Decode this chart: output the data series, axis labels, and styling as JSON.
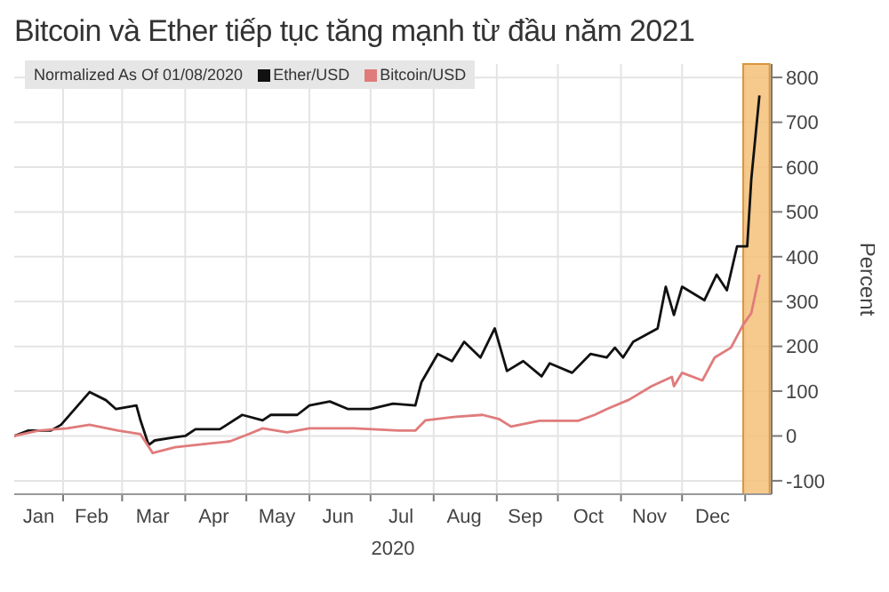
{
  "chart_data": {
    "type": "line",
    "title": "Bitcoin và Ether tiếp tục tăng mạnh từ đầu năm 2021",
    "legend_title": "Normalized As Of 01/08/2020",
    "xlabel": "2020",
    "ylabel": "Percent",
    "legend": "top left",
    "grid": true,
    "marker": "none",
    "line_style": "solid",
    "xlim": [
      "2020-01-08",
      "2021-01-14"
    ],
    "xticks": [
      {
        "value": "2020-01-20",
        "label": "Jan"
      },
      {
        "value": "2020-02-01",
        "label": null
      },
      {
        "value": "2020-02-15",
        "label": "Feb"
      },
      {
        "value": "2020-03-01",
        "label": null
      },
      {
        "value": "2020-03-16",
        "label": "Mar"
      },
      {
        "value": "2020-04-01",
        "label": null
      },
      {
        "value": "2020-04-15",
        "label": "Apr"
      },
      {
        "value": "2020-05-01",
        "label": null
      },
      {
        "value": "2020-05-16",
        "label": "May"
      },
      {
        "value": "2020-06-01",
        "label": null
      },
      {
        "value": "2020-06-15",
        "label": "Jun"
      },
      {
        "value": "2020-07-01",
        "label": null
      },
      {
        "value": "2020-07-16",
        "label": "Jul"
      },
      {
        "value": "2020-08-01",
        "label": null
      },
      {
        "value": "2020-08-16",
        "label": "Aug"
      },
      {
        "value": "2020-09-01",
        "label": null
      },
      {
        "value": "2020-09-15",
        "label": "Sep"
      },
      {
        "value": "2020-10-01",
        "label": null
      },
      {
        "value": "2020-10-16",
        "label": "Oct"
      },
      {
        "value": "2020-11-01",
        "label": null
      },
      {
        "value": "2020-11-15",
        "label": "Nov"
      },
      {
        "value": "2020-12-01",
        "label": null
      },
      {
        "value": "2020-12-16",
        "label": "Dec"
      },
      {
        "value": "2021-01-01",
        "label": null
      }
    ],
    "ylim": [
      -130,
      830
    ],
    "yticks": [
      -100,
      0,
      100,
      200,
      300,
      400,
      500,
      600,
      700,
      800
    ],
    "bands": [
      {
        "axis": "x",
        "from": "2020-12-31",
        "to": "2021-01-13",
        "color": "#f5bf78"
      }
    ],
    "series": [
      {
        "name": "Ether/USD",
        "color": "#111111",
        "x": [
          "2020-01-08",
          "2020-01-15",
          "2020-01-26",
          "2020-01-31",
          "2020-02-14",
          "2020-02-22",
          "2020-02-27",
          "2020-03-08",
          "2020-03-10",
          "2020-03-14",
          "2020-03-17",
          "2020-03-27",
          "2020-04-01",
          "2020-04-06",
          "2020-04-18",
          "2020-04-29",
          "2020-05-09",
          "2020-05-13",
          "2020-05-26",
          "2020-06-01",
          "2020-06-11",
          "2020-06-20",
          "2020-07-01",
          "2020-07-12",
          "2020-07-23",
          "2020-07-26",
          "2020-08-03",
          "2020-08-10",
          "2020-08-16",
          "2020-08-24",
          "2020-08-31",
          "2020-09-06",
          "2020-09-14",
          "2020-09-23",
          "2020-09-27",
          "2020-10-08",
          "2020-10-17",
          "2020-10-25",
          "2020-10-29",
          "2020-11-02",
          "2020-11-07",
          "2020-11-19",
          "2020-11-23",
          "2020-11-27",
          "2020-12-01",
          "2020-12-12",
          "2020-12-18",
          "2020-12-23",
          "2020-12-28",
          "2021-01-02",
          "2021-01-04",
          "2021-01-08"
        ],
        "values": [
          0,
          12,
          12,
          25,
          98,
          80,
          60,
          68,
          35,
          -20,
          -10,
          -3,
          0,
          15,
          15,
          47,
          35,
          47,
          47,
          68,
          77,
          60,
          60,
          72,
          68,
          120,
          183,
          167,
          210,
          175,
          240,
          145,
          167,
          133,
          162,
          141,
          183,
          175,
          197,
          175,
          210,
          240,
          333,
          270,
          333,
          303,
          360,
          325,
          423,
          423,
          573,
          760
        ]
      },
      {
        "name": "Bitcoin/USD",
        "color": "#e07b7b",
        "x": [
          "2020-01-08",
          "2020-01-20",
          "2020-02-03",
          "2020-02-14",
          "2020-02-28",
          "2020-03-10",
          "2020-03-16",
          "2020-03-27",
          "2020-04-12",
          "2020-04-23",
          "2020-05-02",
          "2020-05-09",
          "2020-05-21",
          "2020-06-01",
          "2020-06-23",
          "2020-07-15",
          "2020-07-23",
          "2020-07-28",
          "2020-08-12",
          "2020-08-25",
          "2020-09-02",
          "2020-09-08",
          "2020-09-22",
          "2020-10-11",
          "2020-10-19",
          "2020-10-25",
          "2020-11-05",
          "2020-11-16",
          "2020-11-26",
          "2020-11-27",
          "2020-12-01",
          "2020-12-11",
          "2020-12-17",
          "2020-12-25",
          "2020-12-31",
          "2021-01-04",
          "2021-01-08"
        ],
        "values": [
          0,
          12,
          17,
          25,
          12,
          4,
          -38,
          -25,
          -17,
          -12,
          4,
          17,
          8,
          17,
          17,
          12,
          12,
          35,
          43,
          47,
          38,
          21,
          34,
          34,
          47,
          60,
          81,
          111,
          132,
          111,
          141,
          124,
          175,
          197,
          248,
          274,
          360
        ]
      }
    ]
  }
}
